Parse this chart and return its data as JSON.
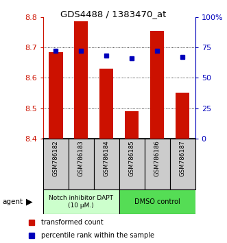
{
  "title": "GDS4488 / 1383470_at",
  "categories": [
    "GSM786182",
    "GSM786183",
    "GSM786184",
    "GSM786185",
    "GSM786186",
    "GSM786187"
  ],
  "red_values": [
    8.685,
    8.785,
    8.63,
    8.49,
    8.755,
    8.55
  ],
  "blue_values_pct": [
    72,
    72,
    68,
    66,
    72,
    67
  ],
  "ylim_left": [
    8.4,
    8.8
  ],
  "ylim_right": [
    0,
    100
  ],
  "yticks_left": [
    8.4,
    8.5,
    8.6,
    8.7,
    8.8
  ],
  "yticks_right": [
    0,
    25,
    50,
    75,
    100
  ],
  "ytick_labels_right": [
    "0",
    "25",
    "50",
    "75",
    "100%"
  ],
  "bar_bottom": 8.4,
  "bar_color": "#cc1100",
  "dot_color": "#0000bb",
  "group1_label": "Notch inhibitor DAPT\n(10 μM.)",
  "group2_label": "DMSO control",
  "group1_color": "#ccffcc",
  "group2_color": "#55dd55",
  "agent_label": "agent",
  "legend_bar": "transformed count",
  "legend_dot": "percentile rank within the sample",
  "left_axis_color": "#cc1100",
  "right_axis_color": "#0000bb",
  "bar_width": 0.55,
  "xlabel_box_color": "#cccccc"
}
